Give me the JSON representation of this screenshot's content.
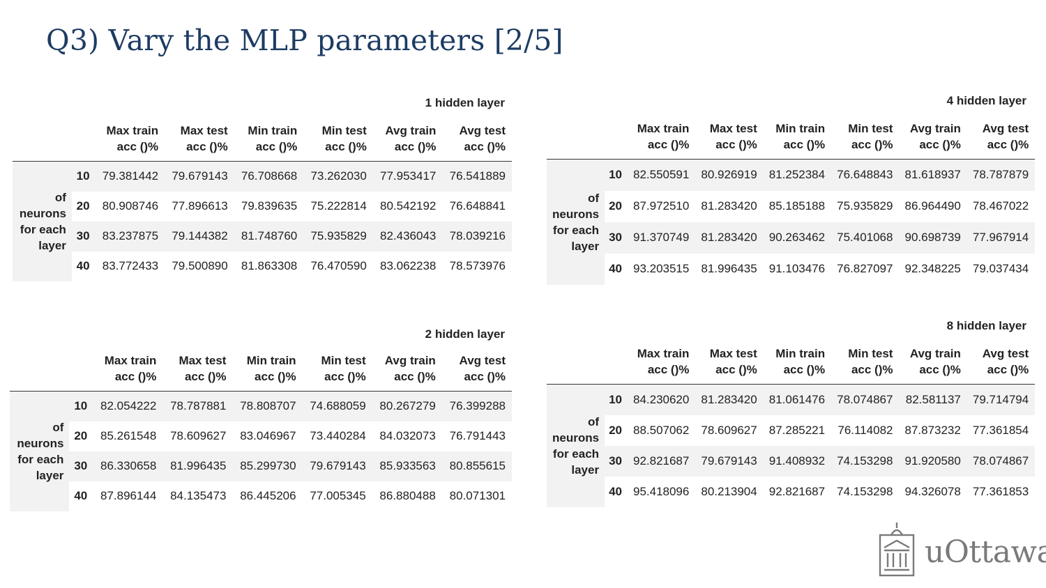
{
  "title": "Q3) Vary the MLP parameters [2/5]",
  "columns": [
    [
      "Max train",
      "acc ()%"
    ],
    [
      "Max test",
      "acc ()%"
    ],
    [
      "Min train",
      "acc ()%"
    ],
    [
      "Min test",
      "acc ()%"
    ],
    [
      "Avg train",
      "acc ()%"
    ],
    [
      "Avg test",
      "acc ()%"
    ]
  ],
  "row_group_label": [
    "of",
    "neurons",
    "for each",
    "layer"
  ],
  "tables": [
    {
      "caption": "1 hidden layer",
      "rows": [
        {
          "index": "10",
          "values": [
            "79.381442",
            "79.679143",
            "76.708668",
            "73.262030",
            "77.953417",
            "76.541889"
          ]
        },
        {
          "index": "20",
          "values": [
            "80.908746",
            "77.896613",
            "79.839635",
            "75.222814",
            "80.542192",
            "76.648841"
          ]
        },
        {
          "index": "30",
          "values": [
            "83.237875",
            "79.144382",
            "81.748760",
            "75.935829",
            "82.436043",
            "78.039216"
          ]
        },
        {
          "index": "40",
          "values": [
            "83.772433",
            "79.500890",
            "81.863308",
            "76.470590",
            "83.062238",
            "78.573976"
          ]
        }
      ]
    },
    {
      "caption": "4 hidden layer",
      "rows": [
        {
          "index": "10",
          "values": [
            "82.550591",
            "80.926919",
            "81.252384",
            "76.648843",
            "81.618937",
            "78.787879"
          ]
        },
        {
          "index": "20",
          "values": [
            "87.972510",
            "81.283420",
            "85.185188",
            "75.935829",
            "86.964490",
            "78.467022"
          ]
        },
        {
          "index": "30",
          "values": [
            "91.370749",
            "81.283420",
            "90.263462",
            "75.401068",
            "90.698739",
            "77.967914"
          ]
        },
        {
          "index": "40",
          "values": [
            "93.203515",
            "81.996435",
            "91.103476",
            "76.827097",
            "92.348225",
            "79.037434"
          ]
        }
      ]
    },
    {
      "caption": "2 hidden layer",
      "rows": [
        {
          "index": "10",
          "values": [
            "82.054222",
            "78.787881",
            "78.808707",
            "74.688059",
            "80.267279",
            "76.399288"
          ]
        },
        {
          "index": "20",
          "values": [
            "85.261548",
            "78.609627",
            "83.046967",
            "73.440284",
            "84.032073",
            "76.791443"
          ]
        },
        {
          "index": "30",
          "values": [
            "86.330658",
            "81.996435",
            "85.299730",
            "79.679143",
            "85.933563",
            "80.855615"
          ]
        },
        {
          "index": "40",
          "values": [
            "87.896144",
            "84.135473",
            "86.445206",
            "77.005345",
            "86.880488",
            "80.071301"
          ]
        }
      ]
    },
    {
      "caption": "8 hidden layer",
      "rows": [
        {
          "index": "10",
          "values": [
            "84.230620",
            "81.283420",
            "81.061476",
            "78.074867",
            "82.581137",
            "79.714794"
          ]
        },
        {
          "index": "20",
          "values": [
            "88.507062",
            "78.609627",
            "87.285221",
            "76.114082",
            "87.873232",
            "77.361854"
          ]
        },
        {
          "index": "30",
          "values": [
            "92.821687",
            "79.679143",
            "91.408932",
            "74.153298",
            "91.920580",
            "78.074867"
          ]
        },
        {
          "index": "40",
          "values": [
            "95.418096",
            "80.213904",
            "92.821687",
            "74.153298",
            "94.326078",
            "77.361853"
          ]
        }
      ]
    }
  ],
  "logo": {
    "text": "uOttawa",
    "icon": "university-building-icon"
  }
}
